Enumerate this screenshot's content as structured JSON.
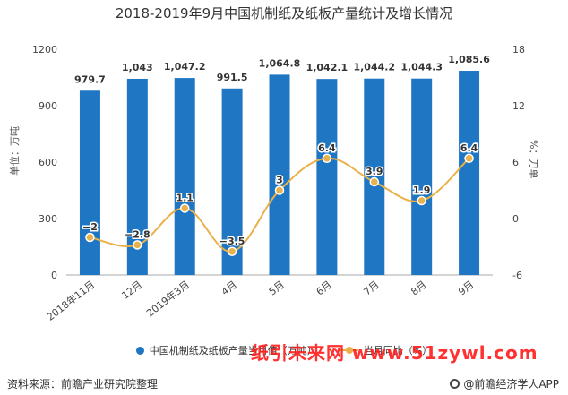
{
  "title": "2018-2019年9月中国机制纸及纸板产量统计及增长情况",
  "chart_data": {
    "type": "bar",
    "categories": [
      "2018年11月",
      "12月",
      "2019年3月",
      "4月",
      "5月",
      "6月",
      "7月",
      "8月",
      "9月"
    ],
    "series": [
      {
        "name": "中国机制纸及纸板产量当月值（万吨）",
        "type": "bar",
        "axis": "left",
        "values": [
          979.7,
          1043,
          1047.2,
          991.5,
          1064.8,
          1042.1,
          1044.2,
          1044.3,
          1085.6
        ],
        "labels": [
          "979.7",
          "1,043",
          "1,047.2",
          "991.5",
          "1,064.8",
          "1,042.1",
          "1,044.2",
          "1,044.3",
          "1,085.6"
        ],
        "color": "#1f77c4"
      },
      {
        "name": "当月同比（%）",
        "type": "line",
        "axis": "right",
        "values": [
          -2,
          -2.8,
          1.1,
          -3.5,
          3,
          6.4,
          3.9,
          1.9,
          6.4
        ],
        "labels": [
          "−2",
          "−2.8",
          "1.1",
          "−3.5",
          "3",
          "6.4",
          "3.9",
          "1.9",
          "6.4"
        ],
        "color": "#e9b14a"
      }
    ],
    "ylabel_left": "单位：万吨",
    "ylabel_right": "%：刀单",
    "ylim_left": [
      0,
      1200
    ],
    "yticks_left": [
      0,
      300,
      600,
      900,
      1200
    ],
    "ylim_right": [
      -6,
      18
    ],
    "yticks_right": [
      -6,
      0,
      6,
      12,
      18
    ],
    "grid": false,
    "legend": "bottom"
  },
  "source": "资料来源：前瞻产业研究院整理",
  "brand": "@前瞻经济学人APP",
  "watermark": "纸引未来网 www.51zywl.com"
}
